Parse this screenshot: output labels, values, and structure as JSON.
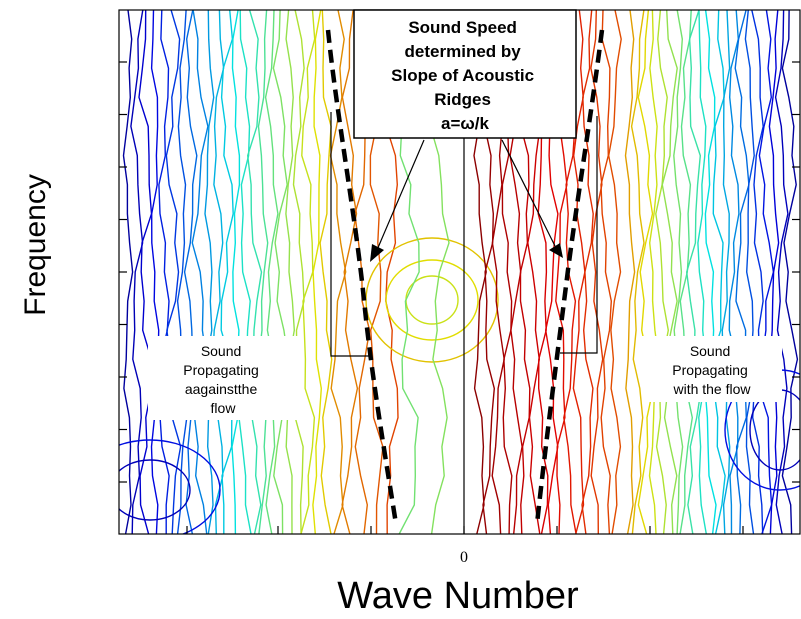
{
  "chart_data": {
    "type": "contour",
    "xlabel": "Wave Number",
    "ylabel": "Frequency",
    "x_tick_labels": [
      "0"
    ],
    "x_range_symmetric": true,
    "y_tick_labels_shown": false,
    "colormap": "jet",
    "zero_line": true,
    "acoustic_ridges": [
      {
        "side": "negative wavenumber",
        "slope_sign": "negative",
        "style": "dashed",
        "color": "#000000"
      },
      {
        "side": "positive wavenumber",
        "slope_sign": "positive",
        "style": "dashed",
        "color": "#000000"
      }
    ]
  },
  "annotations": {
    "title_lines": [
      "Sound Speed",
      "determined by",
      "Slope of Acoustic",
      "Ridges",
      "a=ω/k"
    ],
    "left_note_lines": [
      "Sound",
      "Propagating",
      "aagainstthe",
      "flow"
    ],
    "right_note_lines": [
      "Sound",
      "Propagating",
      "with the flow"
    ]
  },
  "colors": {
    "low": "#0a0a9a",
    "mid": "#e8e030",
    "high": "#b50000"
  }
}
